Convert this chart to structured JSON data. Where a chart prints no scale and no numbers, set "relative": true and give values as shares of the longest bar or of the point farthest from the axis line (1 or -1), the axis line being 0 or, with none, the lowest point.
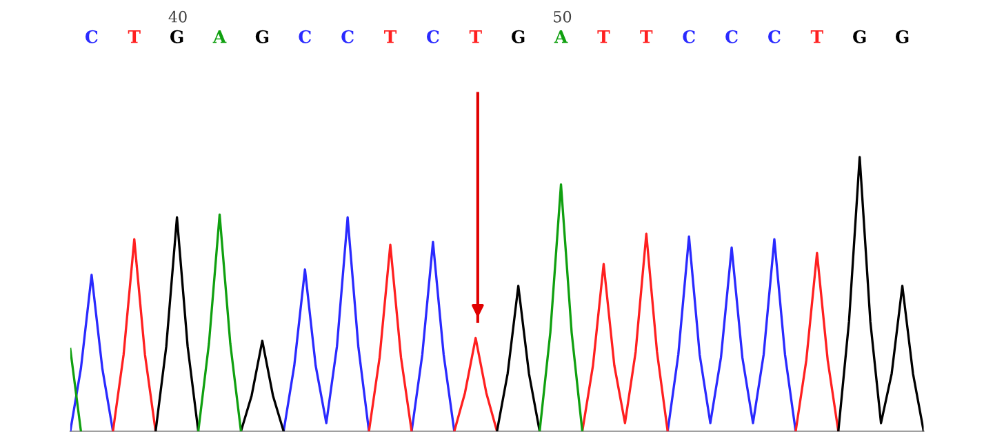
{
  "chart_data": {
    "type": "line",
    "relative": true,
    "tick_labels": "x",
    "line_style": "solid",
    "categories": [
      null,
      null,
      "C",
      null,
      null,
      null,
      "T",
      null,
      null,
      null,
      "G",
      null,
      null,
      null,
      "A",
      null,
      null,
      null,
      "G",
      null,
      null,
      null,
      "C",
      null,
      null,
      null,
      "C",
      null,
      null,
      null,
      "T",
      null,
      null,
      null,
      "C",
      null,
      null,
      null,
      "T",
      null,
      null,
      null,
      "G",
      null,
      null,
      null,
      "A",
      null,
      null,
      null,
      "T",
      null,
      null,
      null,
      "T",
      null,
      null,
      null,
      "C",
      null,
      null,
      null,
      "C",
      null,
      null,
      null,
      "C",
      null,
      null,
      null,
      "T",
      null,
      null,
      null,
      "G",
      null,
      null,
      null,
      "G",
      null,
      null
    ],
    "x2lim": [
      37.2,
      59.4
    ],
    "x2ticks": [
      40,
      50
    ],
    "ref_lines": [
      {
        "axis": "x2",
        "value": 47.8,
        "color": "#e00000"
      }
    ],
    "series": [
      {
        "color": "#2a2aff",
        "values": [
          0,
          0.23,
          0.57,
          0.23,
          0,
          null,
          null,
          null,
          null,
          null,
          null,
          null,
          null,
          null,
          null,
          null,
          null,
          null,
          null,
          null,
          0,
          0.24,
          0.59,
          0.24,
          0.03,
          0.31,
          0.78,
          0.31,
          0,
          null,
          null,
          null,
          0,
          0.28,
          0.69,
          0.28,
          0,
          null,
          null,
          null,
          null,
          null,
          null,
          null,
          null,
          null,
          null,
          null,
          null,
          null,
          null,
          null,
          null,
          null,
          null,
          null,
          0,
          0.28,
          0.71,
          0.28,
          0.03,
          0.27,
          0.67,
          0.27,
          0.03,
          0.28,
          0.7,
          0.28,
          0,
          null,
          null,
          null,
          null,
          null,
          null,
          null,
          null,
          null,
          null,
          null,
          null
        ]
      },
      {
        "color": "#ff2020",
        "values": [
          null,
          null,
          null,
          null,
          0,
          0.28,
          0.7,
          0.28,
          0,
          null,
          null,
          null,
          null,
          null,
          null,
          null,
          null,
          null,
          null,
          null,
          null,
          null,
          null,
          null,
          null,
          null,
          null,
          null,
          0,
          0.27,
          0.68,
          0.27,
          0,
          null,
          null,
          null,
          0,
          0.14,
          0.34,
          0.14,
          0,
          null,
          null,
          null,
          null,
          null,
          null,
          null,
          0,
          0.24,
          0.61,
          0.24,
          0.03,
          0.29,
          0.72,
          0.29,
          0,
          null,
          null,
          null,
          null,
          null,
          null,
          null,
          null,
          null,
          null,
          null,
          0,
          0.26,
          0.65,
          0.26,
          0,
          null,
          null,
          null,
          null,
          null,
          null,
          null,
          null
        ]
      },
      {
        "color": "#000000",
        "values": [
          null,
          null,
          null,
          null,
          null,
          null,
          null,
          null,
          0,
          0.31,
          0.78,
          0.31,
          0,
          null,
          null,
          null,
          0,
          0.13,
          0.33,
          0.13,
          0,
          null,
          null,
          null,
          null,
          null,
          null,
          null,
          null,
          null,
          null,
          null,
          null,
          null,
          null,
          null,
          null,
          null,
          null,
          null,
          0,
          0.21,
          0.53,
          0.21,
          0,
          null,
          null,
          null,
          null,
          null,
          null,
          null,
          null,
          null,
          null,
          null,
          null,
          null,
          null,
          null,
          null,
          null,
          null,
          null,
          null,
          null,
          null,
          null,
          null,
          null,
          null,
          null,
          0,
          0.4,
          1,
          0.4,
          0.03,
          0.21,
          0.53,
          0.21,
          0
        ]
      },
      {
        "color": "#10a010",
        "values": [
          0.3,
          0,
          null,
          null,
          null,
          null,
          null,
          null,
          null,
          null,
          null,
          null,
          0,
          0.32,
          0.79,
          0.32,
          0,
          null,
          null,
          null,
          null,
          null,
          null,
          null,
          null,
          null,
          null,
          null,
          null,
          null,
          null,
          null,
          null,
          null,
          null,
          null,
          null,
          null,
          null,
          null,
          null,
          null,
          null,
          null,
          0,
          0.36,
          0.9,
          0.36,
          0,
          null,
          null,
          null,
          null,
          null,
          null,
          null,
          null,
          null,
          null,
          null,
          null,
          null,
          null,
          null,
          null,
          null,
          null,
          null,
          null,
          null,
          null,
          null,
          null,
          null,
          null,
          null,
          null,
          null,
          null,
          null,
          null
        ]
      }
    ]
  }
}
